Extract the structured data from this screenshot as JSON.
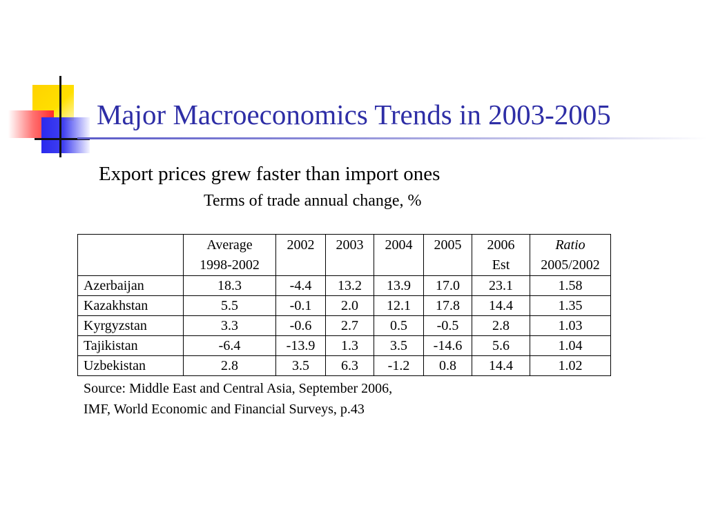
{
  "title": "Major Macroeconomics Trends in 2003-2005",
  "subtitle": "Export prices grew faster than import ones",
  "caption": "Terms of trade annual change, %",
  "table": {
    "headers": {
      "country": "",
      "avg_line1": "Average",
      "avg_line2": "1998-2002",
      "y2002": "2002",
      "y2003": "2003",
      "y2004": "2004",
      "y2005": "2005",
      "y2006_line1": "2006",
      "y2006_line2": "Est",
      "ratio_line1": "Ratio",
      "ratio_line2": "2005/2002"
    },
    "rows": [
      {
        "country": "Azerbaijan",
        "avg": "18.3",
        "y2002": "-4.4",
        "y2003": "13.2",
        "y2004": "13.9",
        "y2005": "17.0",
        "y2006": "23.1",
        "ratio": "1.58"
      },
      {
        "country": "Kazakhstan",
        "avg": "5.5",
        "y2002": "-0.1",
        "y2003": "2.0",
        "y2004": "12.1",
        "y2005": "17.8",
        "y2006": "14.4",
        "ratio": "1.35"
      },
      {
        "country": "Kyrgyzstan",
        "avg": "3.3",
        "y2002": "-0.6",
        "y2003": "2.7",
        "y2004": "0.5",
        "y2005": "-0.5",
        "y2006": "2.8",
        "ratio": "1.03"
      },
      {
        "country": "Tajikistan",
        "avg": "-6.4",
        "y2002": "-13.9",
        "y2003": "1.3",
        "y2004": "3.5",
        "y2005": "-14.6",
        "y2006": "5.6",
        "ratio": "1.04"
      },
      {
        "country": "Uzbekistan",
        "avg": "2.8",
        "y2002": "3.5",
        "y2003": "6.3",
        "y2004": "-1.2",
        "y2005": "0.8",
        "y2006": "14.4",
        "ratio": "1.02"
      }
    ]
  },
  "source": {
    "line1": "Source: Middle East and Central Asia, September 2006,",
    "line2": "IMF, World Economic and Financial Surveys, p.43"
  },
  "colors": {
    "title": "#2e2ea6",
    "logo_yellow": "#ffd200",
    "logo_red": "#ff2a2a",
    "logo_blue": "#2a2aee"
  }
}
